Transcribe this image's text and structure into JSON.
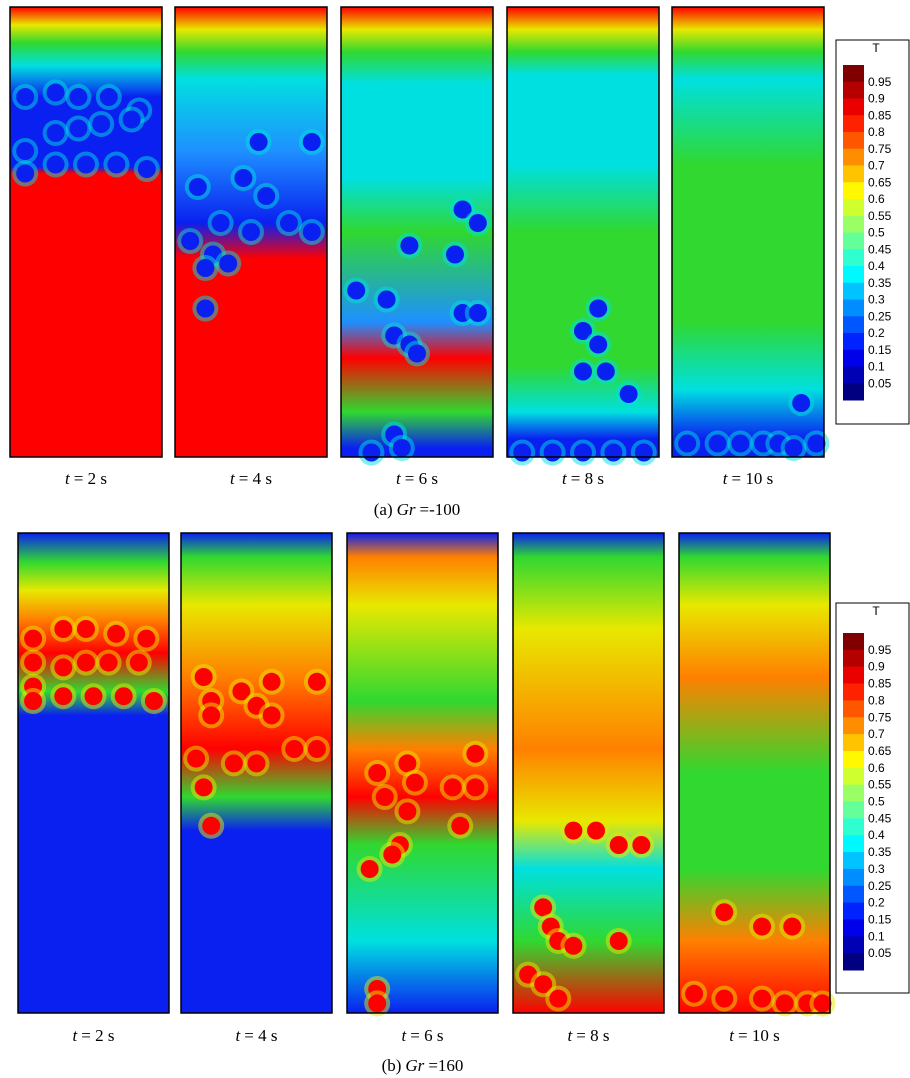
{
  "rows": [
    {
      "panels": [
        {
          "variable": "t",
          "text": "= 2 s"
        },
        {
          "variable": "t",
          "text": "= 4 s"
        },
        {
          "variable": "t",
          "text": "= 6 s"
        },
        {
          "variable": "t",
          "text": "= 8 s"
        },
        {
          "variable": "t",
          "text": "= 10 s"
        }
      ],
      "caption": {
        "label": "(a)",
        "variable": "Gr",
        "value": "=-100"
      },
      "colorbar": {
        "title": "T",
        "labels": [
          "0.95",
          "0.9",
          "0.85",
          "0.8",
          "0.75",
          "0.7",
          "0.65",
          "0.6",
          "0.55",
          "0.5",
          "0.45",
          "0.4",
          "0.35",
          "0.3",
          "0.25",
          "0.2",
          "0.15",
          "0.1",
          "0.05"
        ]
      }
    },
    {
      "panels": [
        {
          "variable": "t",
          "text": "= 2 s"
        },
        {
          "variable": "t",
          "text": "= 4 s"
        },
        {
          "variable": "t",
          "text": "= 6 s"
        },
        {
          "variable": "t",
          "text": "= 8 s"
        },
        {
          "variable": "t",
          "text": "= 10 s"
        }
      ],
      "caption": {
        "label": "(b)",
        "variable": "Gr",
        "value": "=160"
      },
      "colorbar": {
        "title": "T",
        "labels": [
          "0.95",
          "0.9",
          "0.85",
          "0.8",
          "0.75",
          "0.7",
          "0.65",
          "0.6",
          "0.55",
          "0.5",
          "0.45",
          "0.4",
          "0.35",
          "0.3",
          "0.25",
          "0.2",
          "0.15",
          "0.1",
          "0.05"
        ]
      }
    }
  ]
}
